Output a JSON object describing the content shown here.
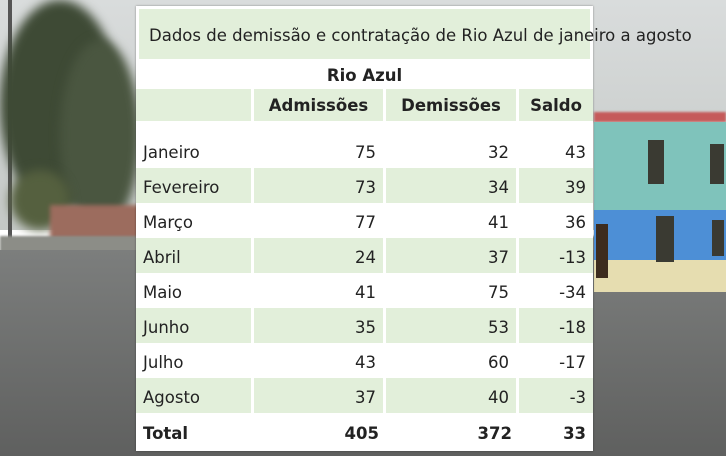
{
  "table": {
    "title": "Dados de demissão e contratação de Rio Azul de janeiro a agosto",
    "group_label": "Rio Azul",
    "columns": [
      "",
      "Admissões",
      "Demissões",
      "Saldo"
    ],
    "rows": [
      {
        "month": "Janeiro",
        "admissoes": "75",
        "demissoes": "32",
        "saldo": "43"
      },
      {
        "month": "Fevereiro",
        "admissoes": "73",
        "demissoes": "34",
        "saldo": "39"
      },
      {
        "month": "Março",
        "admissoes": "77",
        "demissoes": "41",
        "saldo": "36"
      },
      {
        "month": "Abril",
        "admissoes": "24",
        "demissoes": "37",
        "saldo": "-13"
      },
      {
        "month": "Maio",
        "admissoes": "41",
        "demissoes": "75",
        "saldo": "-34"
      },
      {
        "month": "Junho",
        "admissoes": "35",
        "demissoes": "53",
        "saldo": "-18"
      },
      {
        "month": "Julho",
        "admissoes": "43",
        "demissoes": "60",
        "saldo": "-17"
      },
      {
        "month": "Agosto",
        "admissoes": "37",
        "demissoes": "40",
        "saldo": "-3"
      }
    ],
    "total": {
      "label": "Total",
      "admissoes": "405",
      "demissoes": "372",
      "saldo": "33"
    },
    "colors": {
      "shade": "#e2efda",
      "background": "#ffffff"
    }
  }
}
